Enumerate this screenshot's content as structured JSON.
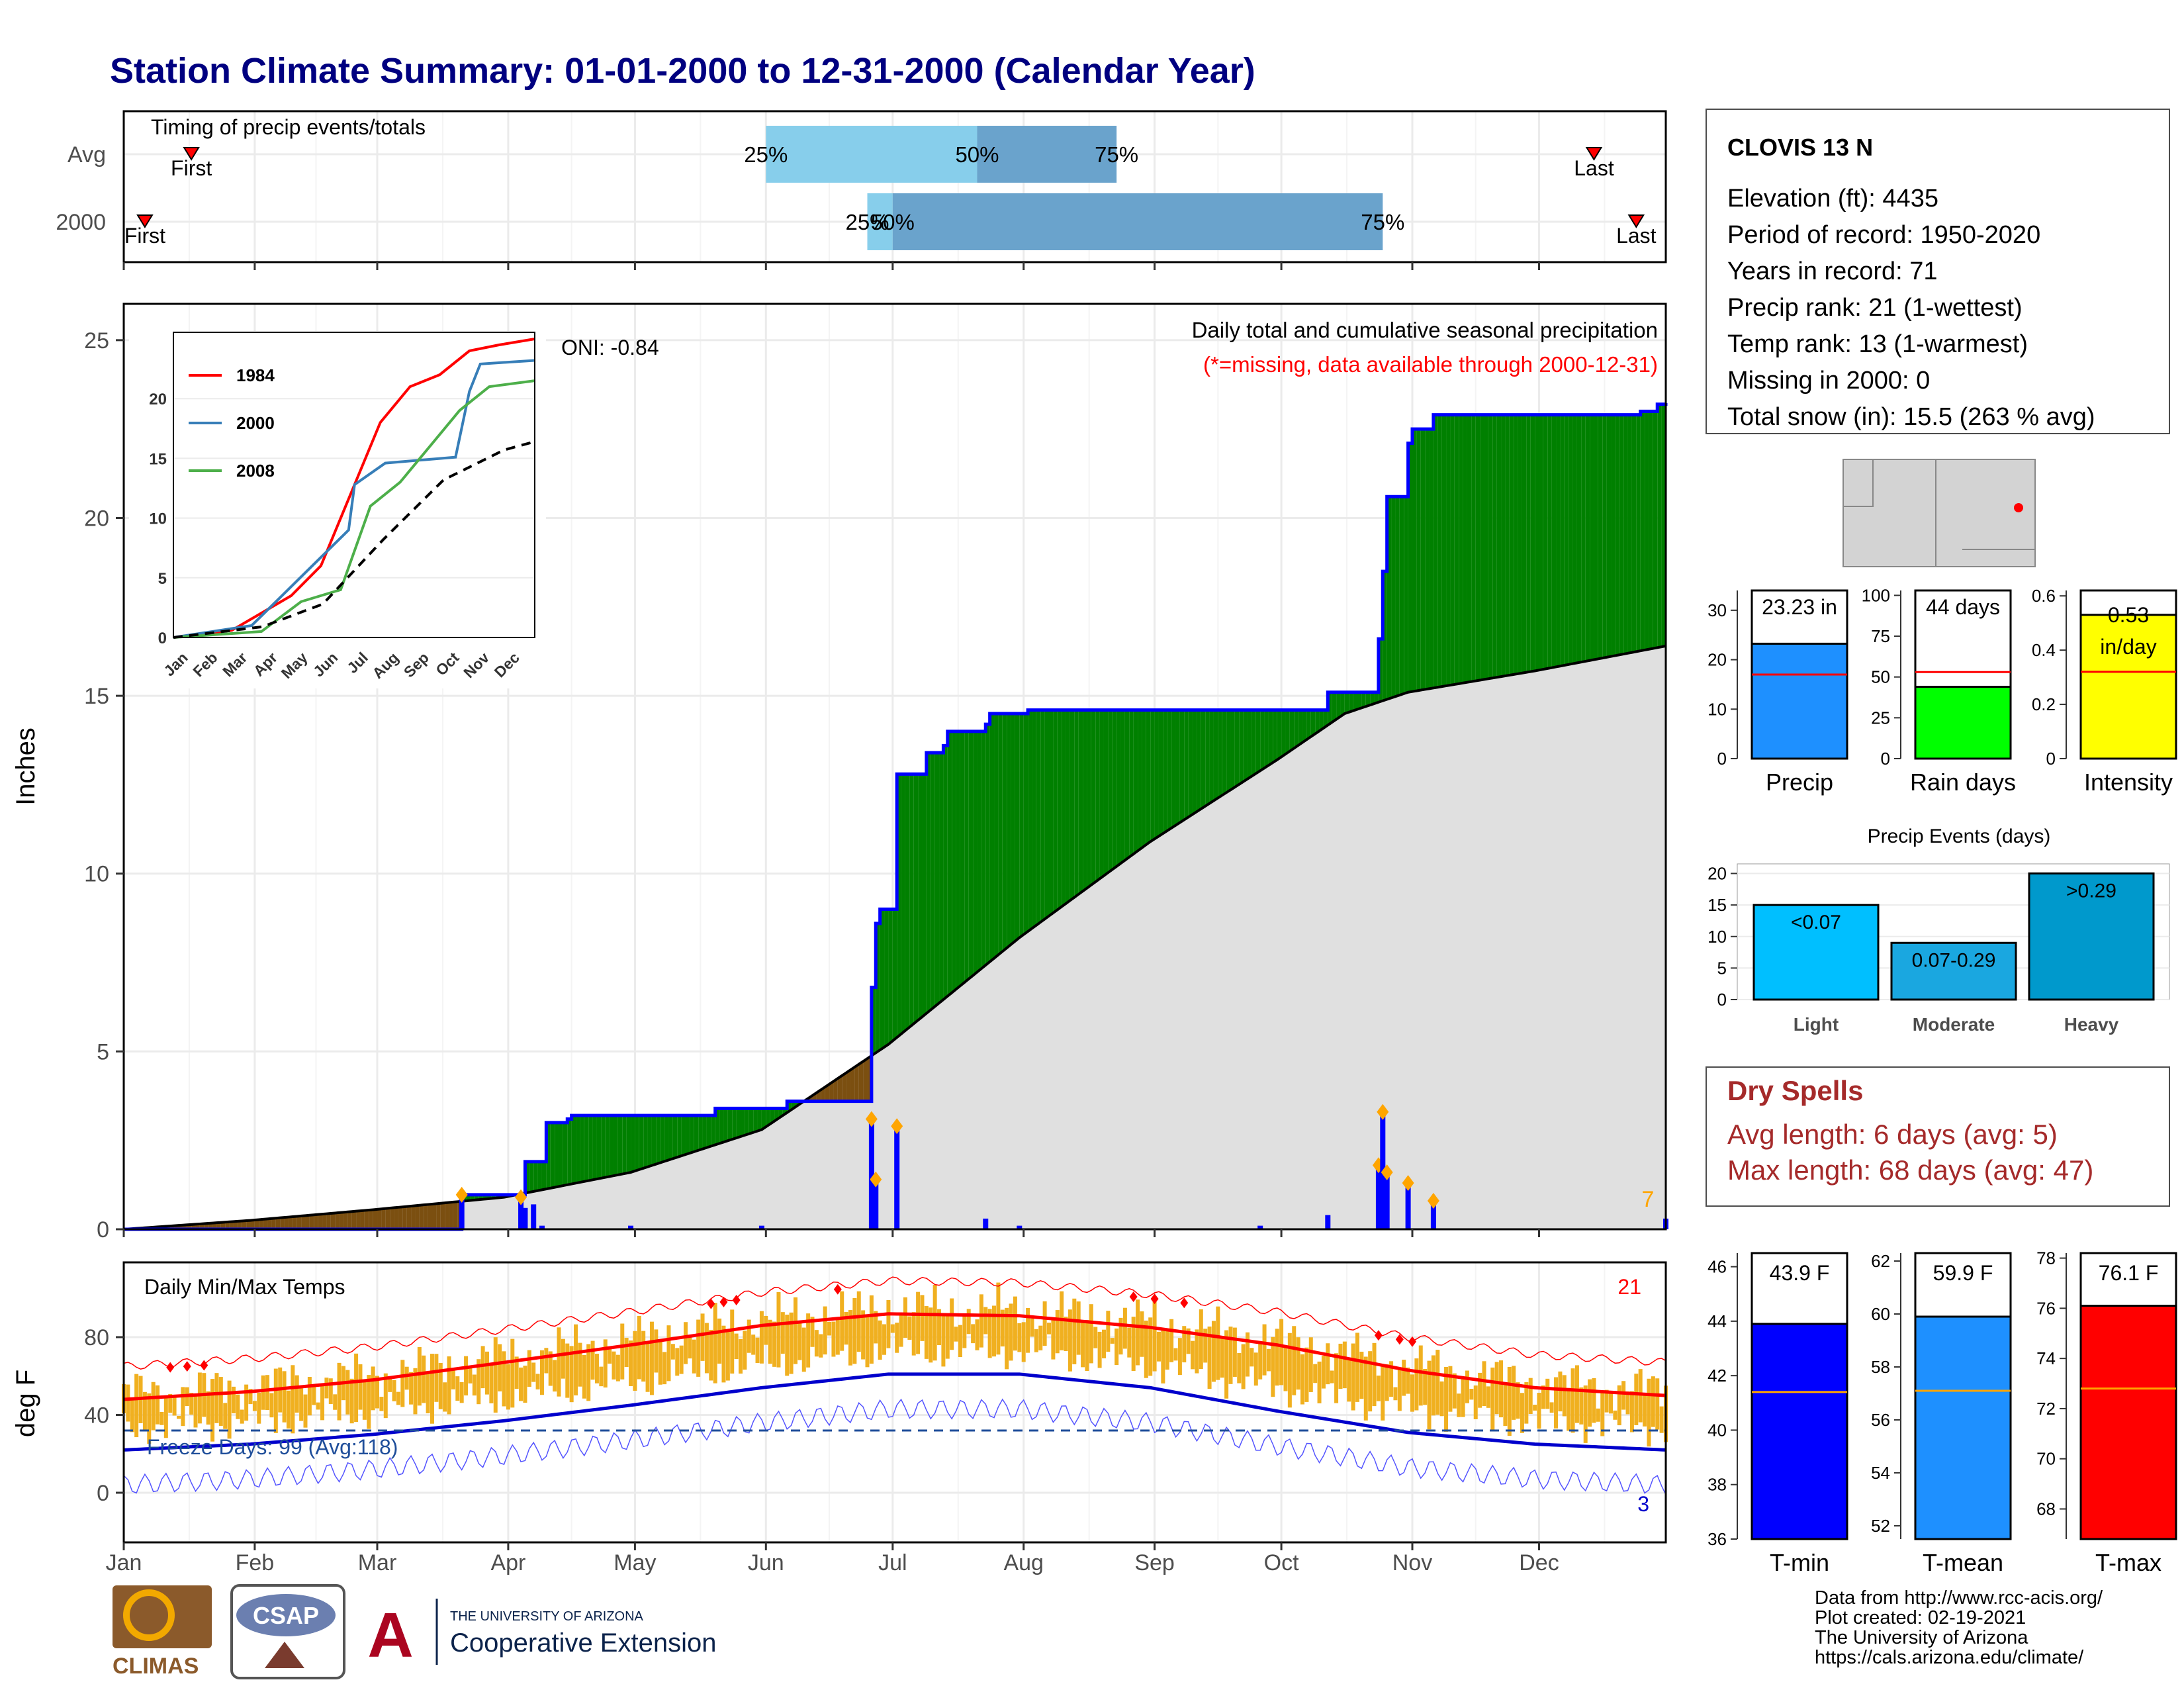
{
  "title": "Station Climate Summary: 01-01-2000 to 12-31-2000 (Calendar Year)",
  "months": [
    "Jan",
    "Feb",
    "Mar",
    "Apr",
    "May",
    "Jun",
    "Jul",
    "Aug",
    "Sep",
    "Oct",
    "Nov",
    "Dec"
  ],
  "colors": {
    "title": "#000080",
    "timing_light": "#87ceeb",
    "timing_dark": "#6aa3cc",
    "surplus": "#008000",
    "deficit": "#7b4f10",
    "normal_area": "#e0e0e0",
    "cum_line": "#0000ff",
    "daily_bar": "#0000ff",
    "marker": "#ffa500",
    "temp_bar": "#f0b020",
    "tmax_line": "#ff0000",
    "tmin_line": "#0000cc",
    "freeze_line": "#1f4e9a",
    "dry_spells": "#a52a2a"
  },
  "timing": {
    "title": "Timing of precip events/totals",
    "rows": [
      {
        "label": "Avg",
        "first_doy": 17,
        "last_doy": 349,
        "p25_doy": 153,
        "p50_doy": 203,
        "p75_doy": 236,
        "first_label": "First",
        "last_label": "Last",
        "p25_label": "25%",
        "p50_label": "50%",
        "p75_label": "75%"
      },
      {
        "label": "2000",
        "first_doy": 6,
        "last_doy": 359,
        "p25_doy": 177,
        "p50_doy": 183,
        "p75_doy": 299,
        "first_label": "First",
        "last_label": "Last",
        "p25_label": "25%",
        "p50_label": "50%",
        "p75_label": "75%"
      }
    ]
  },
  "precip_chart": {
    "ylabel": "Inches",
    "title": "Daily total and cumulative seasonal precipitation",
    "subtitle": "(*=missing, data available through 2000-12-31)",
    "oni": "ONI: -0.84",
    "count_label": "7",
    "yticks": [
      0,
      5,
      10,
      15,
      20,
      25
    ]
  },
  "chart_data": [
    {
      "type": "line",
      "title": "Daily total and cumulative seasonal precipitation",
      "ylabel": "Inches",
      "xlim_doy": [
        1,
        366
      ],
      "ylim": [
        0,
        25
      ],
      "series": [
        {
          "name": "cumulative 2000",
          "points": [
            [
              1,
              0
            ],
            [
              80,
              0
            ],
            [
              81,
              0.97
            ],
            [
              95,
              0.97
            ],
            [
              96,
              1.9
            ],
            [
              100,
              1.9
            ],
            [
              101,
              3.0
            ],
            [
              106,
              3.1
            ],
            [
              107,
              3.2
            ],
            [
              140,
              3.2
            ],
            [
              141,
              3.4
            ],
            [
              152,
              3.4
            ],
            [
              158,
              3.6
            ],
            [
              177,
              3.6
            ],
            [
              178,
              6.8
            ],
            [
              179,
              8.6
            ],
            [
              180,
              9.0
            ],
            [
              183,
              9.0
            ],
            [
              184,
              12.8
            ],
            [
              190,
              12.8
            ],
            [
              191,
              13.4
            ],
            [
              195,
              13.6
            ],
            [
              196,
              14.0
            ],
            [
              205,
              14.2
            ],
            [
              206,
              14.5
            ],
            [
              214,
              14.5
            ],
            [
              215,
              14.6
            ],
            [
              270,
              14.6
            ],
            [
              285,
              14.6
            ],
            [
              286,
              15.1
            ],
            [
              297,
              15.1
            ],
            [
              298,
              16.6
            ],
            [
              299,
              18.5
            ],
            [
              300,
              20.6
            ],
            [
              304,
              20.6
            ],
            [
              305,
              22.1
            ],
            [
              306,
              22.5
            ],
            [
              311,
              22.9
            ],
            [
              318,
              22.9
            ],
            [
              360,
              23.0
            ],
            [
              364,
              23.2
            ],
            [
              366,
              23.23
            ]
          ]
        },
        {
          "name": "average",
          "points": [
            [
              1,
              0
            ],
            [
              31,
              0.25
            ],
            [
              60,
              0.55
            ],
            [
              91,
              0.9
            ],
            [
              121,
              1.6
            ],
            [
              152,
              2.8
            ],
            [
              182,
              5.2
            ],
            [
              213,
              8.2
            ],
            [
              244,
              10.9
            ],
            [
              274,
              13.2
            ],
            [
              290,
              14.5
            ],
            [
              305,
              15.1
            ],
            [
              335,
              15.7
            ],
            [
              366,
              16.4
            ]
          ]
        }
      ],
      "daily_totals": [
        [
          81,
          0.97
        ],
        [
          95,
          0.9
        ],
        [
          96,
          0.6
        ],
        [
          98,
          0.7
        ],
        [
          100,
          0.1
        ],
        [
          121,
          0.1
        ],
        [
          152,
          0.1
        ],
        [
          178,
          3.1
        ],
        [
          179,
          1.4
        ],
        [
          184,
          2.9
        ],
        [
          205,
          0.3
        ],
        [
          213,
          0.1
        ],
        [
          270,
          0.1
        ],
        [
          286,
          0.4
        ],
        [
          298,
          1.8
        ],
        [
          299,
          3.3
        ],
        [
          300,
          1.6
        ],
        [
          305,
          1.3
        ],
        [
          311,
          0.8
        ],
        [
          366,
          0.3
        ]
      ]
    },
    {
      "type": "line",
      "title": "Daily Min/Max Temps",
      "ylabel": "deg F",
      "yticks": [
        0,
        40,
        80
      ],
      "series": [
        {
          "name": "avg max",
          "points": [
            [
              1,
              48
            ],
            [
              31,
              52
            ],
            [
              60,
              58
            ],
            [
              91,
              67
            ],
            [
              121,
              76
            ],
            [
              152,
              86
            ],
            [
              182,
              92
            ],
            [
              213,
              91
            ],
            [
              244,
              85
            ],
            [
              274,
              76
            ],
            [
              305,
              63
            ],
            [
              335,
              54
            ],
            [
              366,
              50
            ]
          ]
        },
        {
          "name": "avg min",
          "points": [
            [
              1,
              22
            ],
            [
              31,
              25
            ],
            [
              60,
              30
            ],
            [
              91,
              37
            ],
            [
              121,
              45
            ],
            [
              152,
              54
            ],
            [
              182,
              61
            ],
            [
              213,
              61
            ],
            [
              244,
              54
            ],
            [
              274,
              42
            ],
            [
              305,
              31
            ],
            [
              335,
              25
            ],
            [
              366,
              22
            ]
          ]
        }
      ],
      "freeze_days": "Freeze Days: 99 (Avg:118)",
      "count_high": "21",
      "count_low": "3"
    },
    {
      "type": "line",
      "title": "",
      "series": [
        {
          "name": "1984",
          "points": [
            [
              1,
              0
            ],
            [
              60,
              0.6
            ],
            [
              120,
              3.5
            ],
            [
              150,
              6
            ],
            [
              180,
              12
            ],
            [
              210,
              18
            ],
            [
              240,
              21
            ],
            [
              270,
              22
            ],
            [
              300,
              24
            ],
            [
              330,
              24.5
            ],
            [
              366,
              25
            ]
          ]
        },
        {
          "name": "2000",
          "points": [
            [
              1,
              0
            ],
            [
              80,
              1
            ],
            [
              107,
              3.2
            ],
            [
              178,
              9
            ],
            [
              184,
              12.8
            ],
            [
              215,
              14.6
            ],
            [
              286,
              15.1
            ],
            [
              300,
              20.6
            ],
            [
              311,
              22.9
            ],
            [
              366,
              23.2
            ]
          ]
        },
        {
          "name": "2008",
          "points": [
            [
              1,
              0
            ],
            [
              90,
              0.5
            ],
            [
              130,
              3
            ],
            [
              170,
              4
            ],
            [
              200,
              11
            ],
            [
              230,
              13
            ],
            [
              260,
              16
            ],
            [
              290,
              19
            ],
            [
              320,
              21
            ],
            [
              366,
              21.5
            ]
          ]
        },
        {
          "name": "average",
          "points": [
            [
              1,
              0
            ],
            [
              91,
              0.9
            ],
            [
              152,
              2.8
            ],
            [
              213,
              8.2
            ],
            [
              274,
              13.2
            ],
            [
              335,
              15.7
            ],
            [
              366,
              16.4
            ]
          ]
        }
      ]
    },
    {
      "type": "bar",
      "categories": [
        "Precip"
      ],
      "values": [
        23.23
      ],
      "avg": 17.0,
      "ylim": [
        0,
        34
      ],
      "yticks": [
        0,
        10,
        20,
        30
      ],
      "label": "23.23 in"
    },
    {
      "type": "bar",
      "categories": [
        "Rain days"
      ],
      "values": [
        44
      ],
      "avg": 53,
      "ylim": [
        0,
        103
      ],
      "yticks": [
        0,
        25,
        50,
        75,
        100
      ],
      "label": "44 days"
    },
    {
      "type": "bar",
      "categories": [
        "Intensity"
      ],
      "values": [
        0.53
      ],
      "avg": 0.32,
      "ylim": [
        0,
        0.62
      ],
      "yticks": [
        0.0,
        0.2,
        0.4,
        0.6
      ],
      "label": "0.53 in/day"
    },
    {
      "type": "bar",
      "title": "Precip Events (days)",
      "categories": [
        "Light",
        "Moderate",
        "Heavy"
      ],
      "values": [
        15,
        9,
        20
      ],
      "yticks": [
        0,
        5,
        10,
        15,
        20
      ],
      "bar_labels": [
        "<0.07",
        "0.07-0.29",
        ">0.29"
      ]
    },
    {
      "type": "bar",
      "categories": [
        "T-min"
      ],
      "values": [
        43.9
      ],
      "avg": 41.4,
      "ylim": [
        36,
        46.5
      ],
      "yticks": [
        36,
        38,
        40,
        42,
        44,
        46
      ],
      "label": "43.9 F"
    },
    {
      "type": "bar",
      "categories": [
        "T-mean"
      ],
      "values": [
        59.9
      ],
      "avg": 57.1,
      "ylim": [
        51.5,
        62.3
      ],
      "yticks": [
        52,
        54,
        56,
        58,
        60,
        62
      ],
      "label": "59.9 F"
    },
    {
      "type": "bar",
      "categories": [
        "T-max"
      ],
      "values": [
        76.1
      ],
      "avg": 72.8,
      "ylim": [
        66.8,
        78.2
      ],
      "yticks": [
        68,
        70,
        72,
        74,
        76,
        78
      ],
      "label": "76.1 F"
    }
  ],
  "station": {
    "name": "CLOVIS 13 N",
    "lines": [
      "Elevation (ft): 4435",
      "Period of record: 1950-2020",
      "Years in record: 71",
      "Precip rank: 21 (1-wettest)",
      "Temp rank: 13 (1-warmest)",
      "Missing in 2000: 0",
      "Total snow (in): 15.5 (263 % avg)"
    ]
  },
  "dry_spells": {
    "title": "Dry Spells",
    "avg": "Avg length: 6 days (avg: 5)",
    "max": "Max length: 68 days (avg: 47)"
  },
  "footer": {
    "lines": [
      "Data from http://www.rcc-acis.org/",
      "Plot created: 02-19-2021",
      "The University of Arizona",
      "https://cals.arizona.edu/climate/"
    ]
  },
  "logos": {
    "climas": "CLIMAS",
    "csap": "CSAP",
    "ua_small": "THE UNIVERSITY OF ARIZONA",
    "ua_big": "Cooperative Extension"
  }
}
